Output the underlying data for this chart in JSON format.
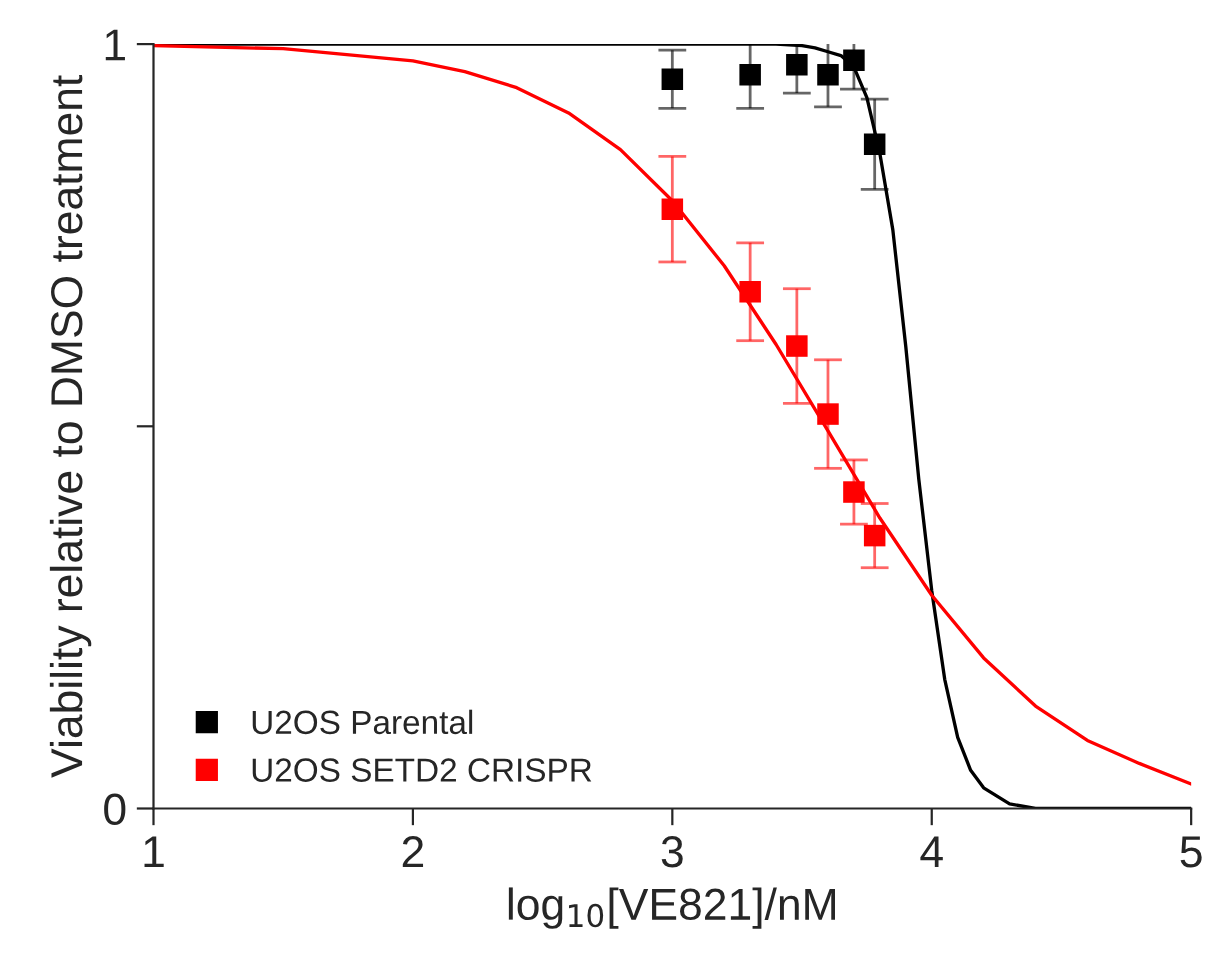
{
  "chart_data": {
    "type": "line",
    "xlabel": "log$_{10}$[VE821]/nM",
    "ylabel": "Viability relative to DMSO treatment",
    "xlim": [
      1,
      5
    ],
    "ylim": [
      0,
      1
    ],
    "xticks": [
      1,
      2,
      3,
      4,
      5
    ],
    "yticks": [
      0,
      {
        "value": 0.5,
        "label": null
      },
      1
    ],
    "legend": "bottom left",
    "grid": false,
    "series": [
      {
        "name": "U2OS Parental",
        "color": "#000000",
        "type": "scatter",
        "marker": "square",
        "x": [
          3.0,
          3.3,
          3.48,
          3.6,
          3.7,
          3.78
        ],
        "values": [
          0.954,
          0.96,
          0.973,
          0.96,
          0.979,
          0.869
        ],
        "errors": [
          0.038,
          0.044,
          0.037,
          0.042,
          0.038,
          0.059
        ]
      },
      {
        "name": "U2OS SETD2 CRISPR",
        "color": "#ff0000",
        "type": "scatter",
        "marker": "square",
        "x": [
          3.0,
          3.3,
          3.48,
          3.6,
          3.7,
          3.78
        ],
        "values": [
          0.784,
          0.676,
          0.605,
          0.516,
          0.414,
          0.357
        ],
        "errors": [
          0.069,
          0.064,
          0.075,
          0.071,
          0.042,
          0.042
        ]
      },
      {
        "color": "#000000",
        "x": [
          1.0,
          2.0,
          3.0,
          3.3,
          3.4,
          3.5,
          3.55,
          3.6,
          3.65,
          3.7,
          3.75,
          3.8,
          3.85,
          3.9,
          3.95,
          4.0,
          4.05,
          4.1,
          4.15,
          4.2,
          4.3,
          4.4,
          4.5,
          4.7,
          5.0
        ],
        "values": [
          1.0,
          1.0,
          1.0,
          1.0,
          1.0,
          0.998,
          0.995,
          0.99,
          0.985,
          0.97,
          0.93,
          0.857,
          0.757,
          0.604,
          0.431,
          0.285,
          0.169,
          0.093,
          0.05,
          0.027,
          0.006,
          0.0,
          0.0,
          0.0,
          0.0
        ]
      },
      {
        "color": "#ff0000",
        "x": [
          1.0,
          1.5,
          2.0,
          2.2,
          2.4,
          2.6,
          2.8,
          3.0,
          3.2,
          3.4,
          3.6,
          3.8,
          4.0,
          4.2,
          4.4,
          4.6,
          4.8,
          5.0
        ],
        "values": [
          0.998,
          0.994,
          0.978,
          0.964,
          0.943,
          0.91,
          0.862,
          0.795,
          0.71,
          0.607,
          0.494,
          0.38,
          0.279,
          0.197,
          0.134,
          0.089,
          0.059,
          0.032
        ]
      }
    ]
  }
}
